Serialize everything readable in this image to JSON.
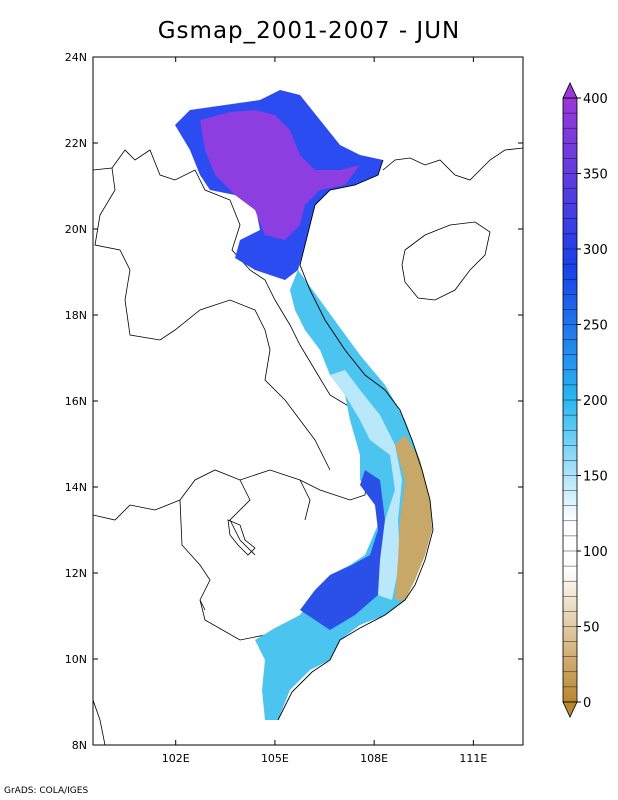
{
  "title": "Gsmap_2001-2007 - JUN",
  "credit": "GrADS: COLA/IGES",
  "map": {
    "lat_ticks": [
      "24N",
      "22N",
      "20N",
      "18N",
      "16N",
      "14N",
      "12N",
      "10N",
      "8N"
    ],
    "lon_ticks": [
      "102E",
      "105E",
      "108E",
      "111E"
    ],
    "lon_range": [
      99.5,
      112.5
    ],
    "lat_range": [
      8,
      24
    ]
  },
  "colorbar": {
    "min": 0,
    "max": 400,
    "step": 10,
    "labels": [
      "0",
      "50",
      "100",
      "150",
      "200",
      "250",
      "300",
      "350",
      "400"
    ],
    "colors": {
      "dry": "#b8862f",
      "mid": "#ffffff",
      "cyan": "#28b8f0",
      "blue": "#1a40e8",
      "purple": "#9a38d8"
    }
  },
  "fill_colors": {
    "north_purple": "#8c3ee0",
    "north_blue": "#2a4cf0",
    "coast_cyan": "#4cc4f0",
    "light_cyan": "#b8e8fa",
    "tan": "#c8a868",
    "south_blue": "#2a50e8"
  }
}
